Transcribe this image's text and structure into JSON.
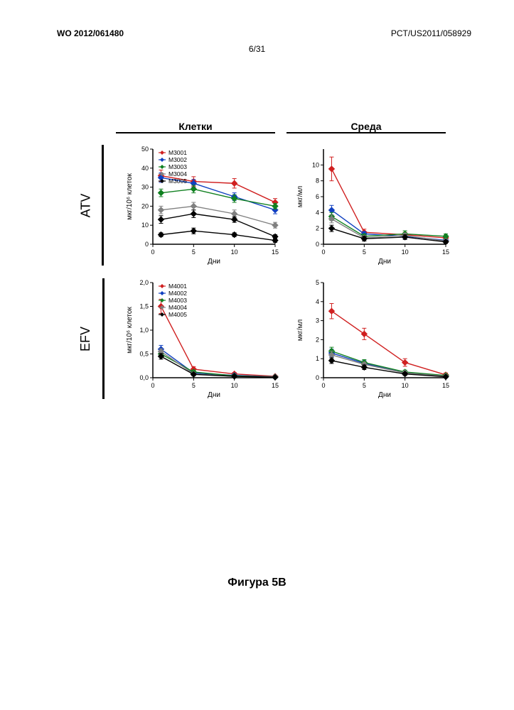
{
  "header": {
    "left": "WO 2012/061480",
    "right": "PCT/US2011/058929",
    "center": "6/31"
  },
  "caption": "Фигура 5B",
  "column_headers": [
    "Клетки",
    "Среда"
  ],
  "row_headers": [
    "ATV",
    "EFV"
  ],
  "colors": {
    "axis": "#000000",
    "series": {
      "s1": "#d02020",
      "s2": "#1040c0",
      "s3": "#108020",
      "s4": "#808080",
      "s5": "#000000"
    },
    "marker": "diamond",
    "marker_size": 4,
    "line_width": 1.4,
    "errorbar_cap": 3,
    "background": "#ffffff"
  },
  "charts": {
    "atv_cells": {
      "type": "line_errorbar",
      "xlabel": "Дни",
      "ylabel": "мкг/10⁶ клеток",
      "xlim": [
        0,
        15
      ],
      "xticks": [
        0,
        5,
        10,
        15
      ],
      "ylim": [
        0,
        50
      ],
      "yticks": [
        0,
        10,
        20,
        30,
        40,
        50
      ],
      "label_fontsize": 10,
      "tick_fontsize": 9,
      "legend": [
        "M3001",
        "M3002",
        "M3003",
        "M3004",
        "M3005"
      ],
      "legend_pos": "upper-left",
      "x": [
        1,
        5,
        10,
        15
      ],
      "series": [
        {
          "key": "s1",
          "y": [
            36,
            33,
            32,
            22
          ],
          "err": [
            3,
            2.5,
            2.5,
            2
          ]
        },
        {
          "key": "s2",
          "y": [
            35,
            32,
            25,
            18
          ],
          "err": [
            2.5,
            2,
            2,
            2
          ]
        },
        {
          "key": "s3",
          "y": [
            27,
            29,
            24,
            20
          ],
          "err": [
            2,
            2,
            2,
            1.5
          ]
        },
        {
          "key": "s4",
          "y": [
            18,
            20,
            16,
            10
          ],
          "err": [
            2,
            2,
            2,
            1.5
          ]
        },
        {
          "key": "s5",
          "y": [
            13,
            16,
            13,
            4
          ],
          "err": [
            2,
            2,
            1.5,
            1
          ]
        }
      ],
      "extra_series_low": {
        "key": "s5",
        "y": [
          5,
          7,
          5,
          2
        ],
        "err": [
          1,
          1.5,
          1,
          1
        ]
      }
    },
    "atv_media": {
      "type": "line_errorbar",
      "xlabel": "Дни",
      "ylabel": "мкг/мл",
      "xlim": [
        0,
        15
      ],
      "xticks": [
        0,
        5,
        10,
        15
      ],
      "ylim": [
        0,
        12
      ],
      "yticks": [
        0,
        2,
        4,
        6,
        8,
        10
      ],
      "label_fontsize": 10,
      "tick_fontsize": 9,
      "x": [
        1,
        5,
        10,
        15
      ],
      "series": [
        {
          "key": "s1",
          "y": [
            9.5,
            1.5,
            1.2,
            0.8
          ],
          "err": [
            1.5,
            0.4,
            0.3,
            0.3
          ]
        },
        {
          "key": "s2",
          "y": [
            4.3,
            1.3,
            1.0,
            0.5
          ],
          "err": [
            0.6,
            0.3,
            0.3,
            0.2
          ]
        },
        {
          "key": "s3",
          "y": [
            3.5,
            1.0,
            1.3,
            1.0
          ],
          "err": [
            0.5,
            0.3,
            0.4,
            0.3
          ]
        },
        {
          "key": "s4",
          "y": [
            3.2,
            0.8,
            1.1,
            0.4
          ],
          "err": [
            0.5,
            0.3,
            0.3,
            0.2
          ]
        },
        {
          "key": "s5",
          "y": [
            2.0,
            0.7,
            0.9,
            0.3
          ],
          "err": [
            0.4,
            0.3,
            0.3,
            0.2
          ]
        }
      ]
    },
    "efv_cells": {
      "type": "line_errorbar",
      "xlabel": "Дни",
      "ylabel": "мкг/10⁶ клеток",
      "xlim": [
        0,
        15
      ],
      "xticks": [
        0,
        5,
        10,
        15
      ],
      "ylim": [
        0,
        2.0
      ],
      "yticks": [
        0.0,
        0.5,
        1.0,
        1.5,
        2.0
      ],
      "ytick_labels": [
        "0,0",
        "0,5",
        "1,0",
        "1,5",
        "2,0"
      ],
      "label_fontsize": 10,
      "tick_fontsize": 9,
      "legend": [
        "M4001",
        "M4002",
        "M4003",
        "M4004",
        "M4005"
      ],
      "legend_pos": "upper-left",
      "x": [
        1,
        5,
        10,
        15
      ],
      "series": [
        {
          "key": "s1",
          "y": [
            1.5,
            0.18,
            0.08,
            0.03
          ],
          "err": [
            0.15,
            0.05,
            0.03,
            0.02
          ]
        },
        {
          "key": "s2",
          "y": [
            0.6,
            0.1,
            0.05,
            0.02
          ],
          "err": [
            0.08,
            0.04,
            0.03,
            0.02
          ]
        },
        {
          "key": "s3",
          "y": [
            0.5,
            0.12,
            0.04,
            0.02
          ],
          "err": [
            0.07,
            0.04,
            0.02,
            0.02
          ]
        },
        {
          "key": "s4",
          "y": [
            0.55,
            0.08,
            0.03,
            0.02
          ],
          "err": [
            0.06,
            0.03,
            0.02,
            0.01
          ]
        },
        {
          "key": "s5",
          "y": [
            0.45,
            0.07,
            0.03,
            0.01
          ],
          "err": [
            0.06,
            0.03,
            0.02,
            0.01
          ]
        }
      ]
    },
    "efv_media": {
      "type": "line_errorbar",
      "xlabel": "Дни",
      "ylabel": "мкг/мл",
      "xlim": [
        0,
        15
      ],
      "xticks": [
        0,
        5,
        10,
        15
      ],
      "ylim": [
        0,
        5
      ],
      "yticks": [
        0,
        1,
        2,
        3,
        4,
        5
      ],
      "label_fontsize": 10,
      "tick_fontsize": 9,
      "x": [
        1,
        5,
        10,
        15
      ],
      "series": [
        {
          "key": "s1",
          "y": [
            3.5,
            2.3,
            0.8,
            0.15
          ],
          "err": [
            0.4,
            0.3,
            0.2,
            0.1
          ]
        },
        {
          "key": "s2",
          "y": [
            1.3,
            0.75,
            0.25,
            0.1
          ],
          "err": [
            0.2,
            0.15,
            0.1,
            0.05
          ]
        },
        {
          "key": "s3",
          "y": [
            1.4,
            0.8,
            0.3,
            0.12
          ],
          "err": [
            0.2,
            0.15,
            0.1,
            0.05
          ]
        },
        {
          "key": "s4",
          "y": [
            1.2,
            0.7,
            0.25,
            0.08
          ],
          "err": [
            0.2,
            0.12,
            0.1,
            0.05
          ]
        },
        {
          "key": "s5",
          "y": [
            0.9,
            0.55,
            0.2,
            0.05
          ],
          "err": [
            0.15,
            0.12,
            0.08,
            0.05
          ]
        }
      ]
    }
  }
}
